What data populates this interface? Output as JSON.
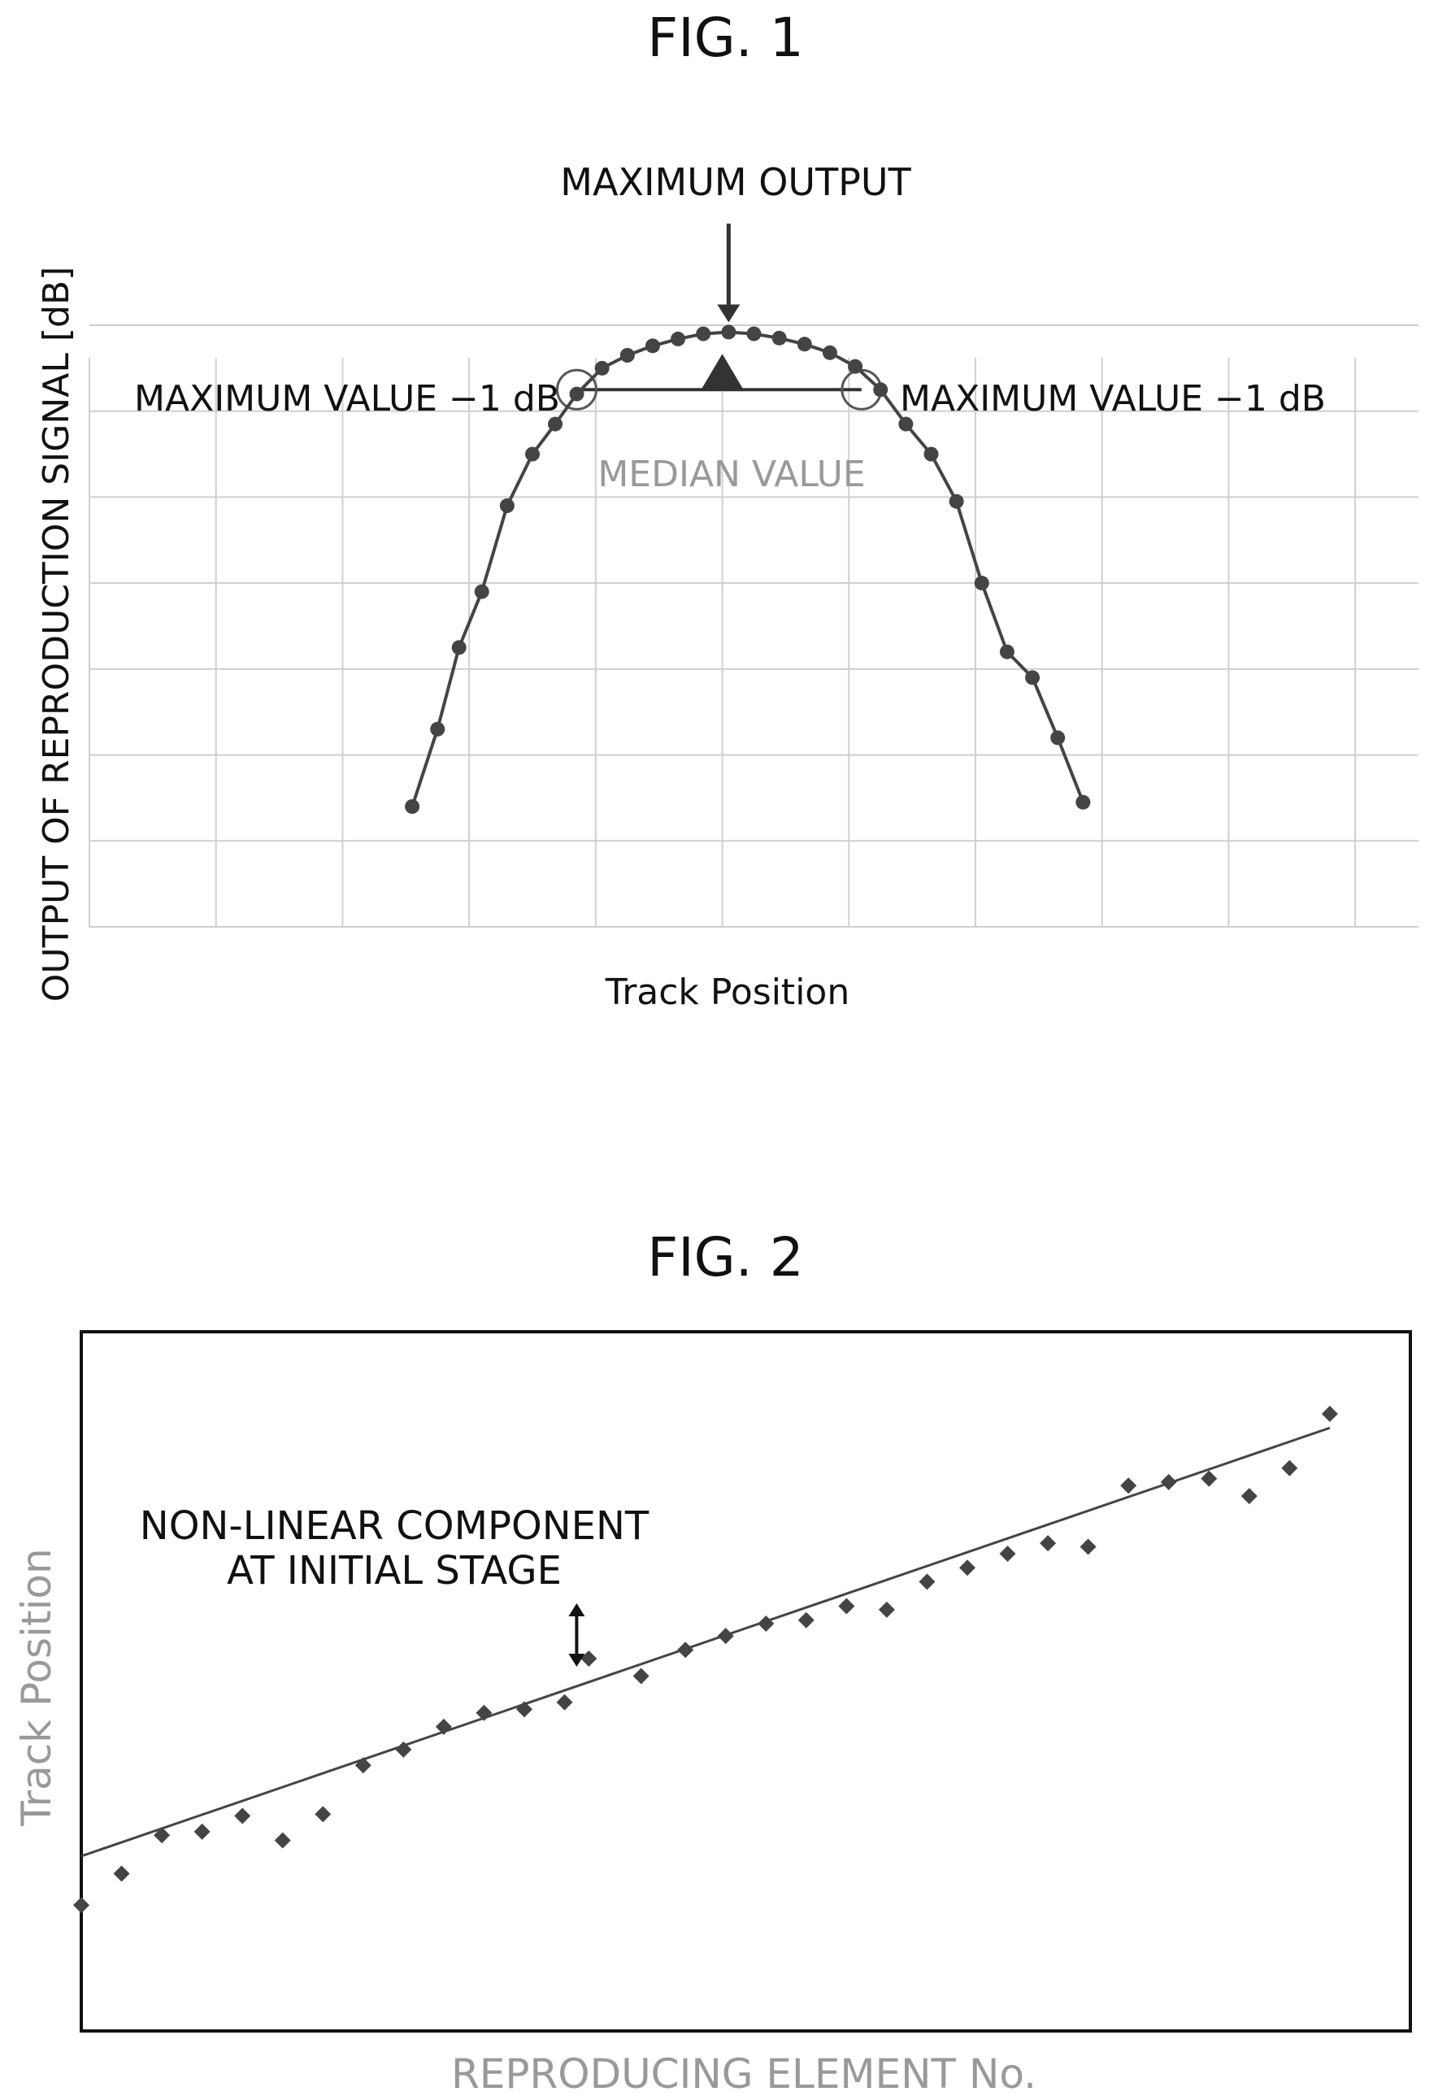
{
  "fig1": {
    "title": "FIG. 1",
    "chart_data": {
      "type": "line",
      "xlabel": "Track Position",
      "ylabel": "OUTPUT OF REPRODUCTION SIGNAL [dB]",
      "xlim": [
        0,
        10.5
      ],
      "ylim": [
        0,
        7
      ],
      "grid": true,
      "series": [
        {
          "values": [
            [
              2.55,
              1.4
            ],
            [
              2.75,
              2.3
            ],
            [
              2.92,
              3.25
            ],
            [
              3.1,
              3.9
            ],
            [
              3.3,
              4.9
            ],
            [
              3.5,
              5.5
            ],
            [
              3.68,
              5.85
            ],
            [
              3.85,
              6.2
            ],
            [
              4.05,
              6.5
            ],
            [
              4.25,
              6.65
            ],
            [
              4.45,
              6.76
            ],
            [
              4.65,
              6.84
            ],
            [
              4.85,
              6.9
            ],
            [
              5.05,
              6.92
            ],
            [
              5.25,
              6.9
            ],
            [
              5.45,
              6.85
            ],
            [
              5.65,
              6.78
            ],
            [
              5.85,
              6.68
            ],
            [
              6.05,
              6.52
            ],
            [
              6.25,
              6.25
            ],
            [
              6.45,
              5.85
            ],
            [
              6.65,
              5.5
            ],
            [
              6.85,
              4.95
            ],
            [
              7.05,
              4.0
            ],
            [
              7.25,
              3.2
            ],
            [
              7.45,
              2.9
            ],
            [
              7.65,
              2.2
            ],
            [
              7.85,
              1.45
            ]
          ]
        }
      ],
      "annotations": {
        "maximum_output": "MAXIMUM OUTPUT",
        "left_threshold": "MAXIMUM VALUE −1 dB",
        "right_threshold": "MAXIMUM VALUE −1 dB",
        "median": "MEDIAN VALUE"
      },
      "median_x": 5.0,
      "threshold_y": 6.25,
      "threshold_x": [
        3.85,
        6.1
      ]
    }
  },
  "fig2": {
    "title": "FIG. 2",
    "chart_data": {
      "type": "scatter",
      "xlabel": "REPRODUCING ELEMENT No.",
      "ylabel": "Track Position",
      "xlim": [
        0,
        33
      ],
      "ylim": [
        0,
        40
      ],
      "grid": false,
      "points": [
        [
          0,
          7.2
        ],
        [
          1,
          9.0
        ],
        [
          2,
          11.2
        ],
        [
          3,
          11.4
        ],
        [
          4,
          12.3
        ],
        [
          5,
          10.9
        ],
        [
          6,
          12.4
        ],
        [
          7,
          15.2
        ],
        [
          8,
          16.1
        ],
        [
          9,
          17.4
        ],
        [
          10,
          18.2
        ],
        [
          11,
          18.4
        ],
        [
          12,
          18.8
        ],
        [
          12.6,
          21.3
        ],
        [
          13.9,
          20.3
        ],
        [
          15,
          21.8
        ],
        [
          16,
          22.6
        ],
        [
          17,
          23.3
        ],
        [
          18,
          23.5
        ],
        [
          19,
          24.3
        ],
        [
          20,
          24.1
        ],
        [
          21,
          25.7
        ],
        [
          22,
          26.5
        ],
        [
          23,
          27.3
        ],
        [
          24,
          27.9
        ],
        [
          25,
          27.7
        ],
        [
          26,
          31.2
        ],
        [
          27,
          31.4
        ],
        [
          28,
          31.6
        ],
        [
          29,
          30.6
        ],
        [
          30,
          32.2
        ],
        [
          31,
          35.3
        ]
      ],
      "trendline": [
        [
          0,
          10.0
        ],
        [
          31,
          34.5
        ]
      ],
      "annotation": [
        "NON-LINEAR COMPONENT",
        "AT INITIAL STAGE"
      ],
      "annotation_x": 12.3
    }
  }
}
